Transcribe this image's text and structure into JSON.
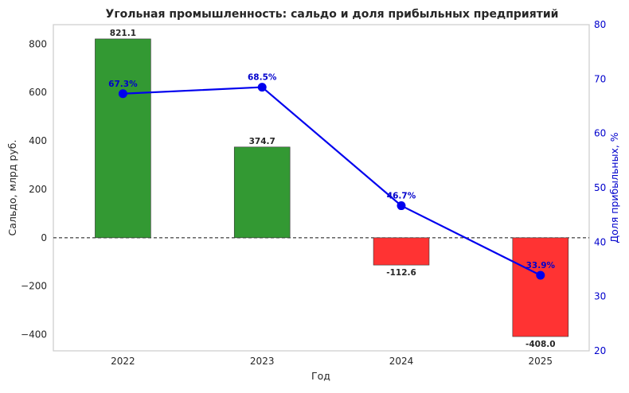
{
  "chart_data": {
    "type": "bar",
    "title": "Угольная промышленность: сальдо и доля прибыльных предприятий",
    "xlabel": "Год",
    "ylabel": "Сальдо, млрд руб.",
    "y2label": "Доля прибыльных, %",
    "categories": [
      "2022",
      "2023",
      "2024",
      "2025"
    ],
    "ylim": [
      -467,
      880
    ],
    "y2lim": [
      20,
      80
    ],
    "yticks": [
      -400,
      -200,
      0,
      200,
      400,
      600,
      800
    ],
    "y2ticks": [
      20,
      30,
      40,
      50,
      60,
      70,
      80
    ],
    "grid": false,
    "zero_line": true,
    "series": [
      {
        "name": "Сальдо",
        "kind": "bar",
        "axis": "left",
        "values": [
          821.1,
          374.7,
          -112.6,
          -408.0
        ],
        "labels": [
          "821.1",
          "374.7",
          "-112.6",
          "-408.0"
        ],
        "positive_color": "#339933",
        "negative_color": "#ff3333"
      },
      {
        "name": "Доля прибыльных",
        "kind": "line",
        "axis": "right",
        "values": [
          67.3,
          68.5,
          46.7,
          33.9
        ],
        "labels": [
          "67.3%",
          "68.5%",
          "46.7%",
          "33.9%"
        ],
        "color": "#0000ee"
      }
    ]
  }
}
